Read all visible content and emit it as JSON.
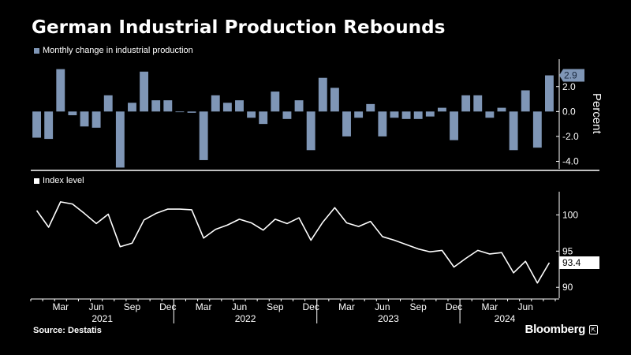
{
  "title": "German Industrial Production Rebounds",
  "source": "Source: Destatis",
  "brand": "Bloomberg",
  "brand_icon": "bloomberg-terminal-icon",
  "colors": {
    "background": "#000000",
    "bar": "#7f96b6",
    "line": "#ffffff",
    "text": "#ffffff"
  },
  "chart_data": [
    {
      "type": "bar",
      "legend": "Monthly change in industrial production",
      "ylabel": "Percent",
      "ylim": [
        -4.6,
        4.2
      ],
      "yticks": [
        -4.0,
        -2.0,
        0.0,
        2.0
      ],
      "ytick_labels": [
        "-4.0",
        "-2.0",
        "0.0",
        "2.0"
      ],
      "callout": {
        "value": 2.9,
        "label": "2.9"
      },
      "categories": [
        "Jan 2021",
        "Feb 2021",
        "Mar 2021",
        "Apr 2021",
        "May 2021",
        "Jun 2021",
        "Jul 2021",
        "Aug 2021",
        "Sep 2021",
        "Oct 2021",
        "Nov 2021",
        "Dec 2021",
        "Jan 2022",
        "Feb 2022",
        "Mar 2022",
        "Apr 2022",
        "May 2022",
        "Jun 2022",
        "Jul 2022",
        "Aug 2022",
        "Sep 2022",
        "Oct 2022",
        "Nov 2022",
        "Dec 2022",
        "Jan 2023",
        "Feb 2023",
        "Mar 2023",
        "Apr 2023",
        "May 2023",
        "Jun 2023",
        "Jul 2023",
        "Aug 2023",
        "Sep 2023",
        "Oct 2023",
        "Nov 2023",
        "Dec 2023",
        "Jan 2024",
        "Feb 2024",
        "Mar 2024",
        "Apr 2024",
        "May 2024",
        "Jun 2024",
        "Jul 2024",
        "Aug 2024"
      ],
      "values": [
        -2.1,
        -2.2,
        3.4,
        -0.3,
        -1.2,
        -1.3,
        1.3,
        -4.5,
        0.7,
        3.2,
        0.9,
        0.9,
        -0.05,
        -0.1,
        -3.9,
        1.3,
        0.7,
        0.9,
        -0.5,
        -1.0,
        1.6,
        -0.6,
        0.9,
        -3.1,
        2.7,
        1.9,
        -2.0,
        -0.5,
        0.6,
        -2.0,
        -0.5,
        -0.6,
        -0.6,
        -0.4,
        0.3,
        -2.3,
        1.3,
        1.3,
        -0.5,
        0.3,
        -3.1,
        1.7,
        -2.9,
        2.9
      ]
    },
    {
      "type": "line",
      "legend": "Index level",
      "ylim": [
        88.5,
        103.2
      ],
      "yticks": [
        90,
        95,
        100
      ],
      "ytick_labels": [
        "90",
        "95",
        "100"
      ],
      "callout": {
        "value": 93.4,
        "label": "93.4"
      },
      "categories": [
        "Jan 2021",
        "Feb 2021",
        "Mar 2021",
        "Apr 2021",
        "May 2021",
        "Jun 2021",
        "Jul 2021",
        "Aug 2021",
        "Sep 2021",
        "Oct 2021",
        "Nov 2021",
        "Dec 2021",
        "Jan 2022",
        "Feb 2022",
        "Mar 2022",
        "Apr 2022",
        "May 2022",
        "Jun 2022",
        "Jul 2022",
        "Aug 2022",
        "Sep 2022",
        "Oct 2022",
        "Nov 2022",
        "Dec 2022",
        "Jan 2023",
        "Feb 2023",
        "Mar 2023",
        "Apr 2023",
        "May 2023",
        "Jun 2023",
        "Jul 2023",
        "Aug 2023",
        "Sep 2023",
        "Oct 2023",
        "Nov 2023",
        "Dec 2023",
        "Jan 2024",
        "Feb 2024",
        "Mar 2024",
        "Apr 2024",
        "May 2024",
        "Jun 2024",
        "Jul 2024",
        "Aug 2024"
      ],
      "values": [
        100.6,
        98.3,
        101.8,
        101.5,
        100.2,
        98.8,
        100.1,
        95.6,
        96.1,
        99.3,
        100.2,
        100.8,
        100.8,
        100.7,
        96.8,
        98.0,
        98.6,
        99.4,
        98.9,
        97.9,
        99.4,
        98.8,
        99.6,
        96.5,
        99.0,
        101.0,
        98.9,
        98.4,
        99.1,
        97.0,
        96.5,
        95.9,
        95.3,
        94.9,
        95.1,
        92.8,
        94.0,
        95.1,
        94.6,
        94.8,
        92.0,
        93.6,
        90.6,
        93.4
      ]
    }
  ],
  "x_axis": {
    "month_labels": [
      {
        "index": 2,
        "label": "Mar"
      },
      {
        "index": 5,
        "label": "Jun"
      },
      {
        "index": 8,
        "label": "Sep"
      },
      {
        "index": 11,
        "label": "Dec"
      },
      {
        "index": 14,
        "label": "Mar"
      },
      {
        "index": 17,
        "label": "Jun"
      },
      {
        "index": 20,
        "label": "Sep"
      },
      {
        "index": 23,
        "label": "Dec"
      },
      {
        "index": 26,
        "label": "Mar"
      },
      {
        "index": 29,
        "label": "Jun"
      },
      {
        "index": 32,
        "label": "Sep"
      },
      {
        "index": 35,
        "label": "Dec"
      },
      {
        "index": 38,
        "label": "Mar"
      },
      {
        "index": 41,
        "label": "Jun"
      }
    ],
    "year_labels": [
      {
        "center_index": 5.5,
        "label": "2021"
      },
      {
        "center_index": 17.5,
        "label": "2022"
      },
      {
        "center_index": 29.5,
        "label": "2023"
      },
      {
        "center_index": 41.5,
        "label": "2024"
      }
    ]
  }
}
